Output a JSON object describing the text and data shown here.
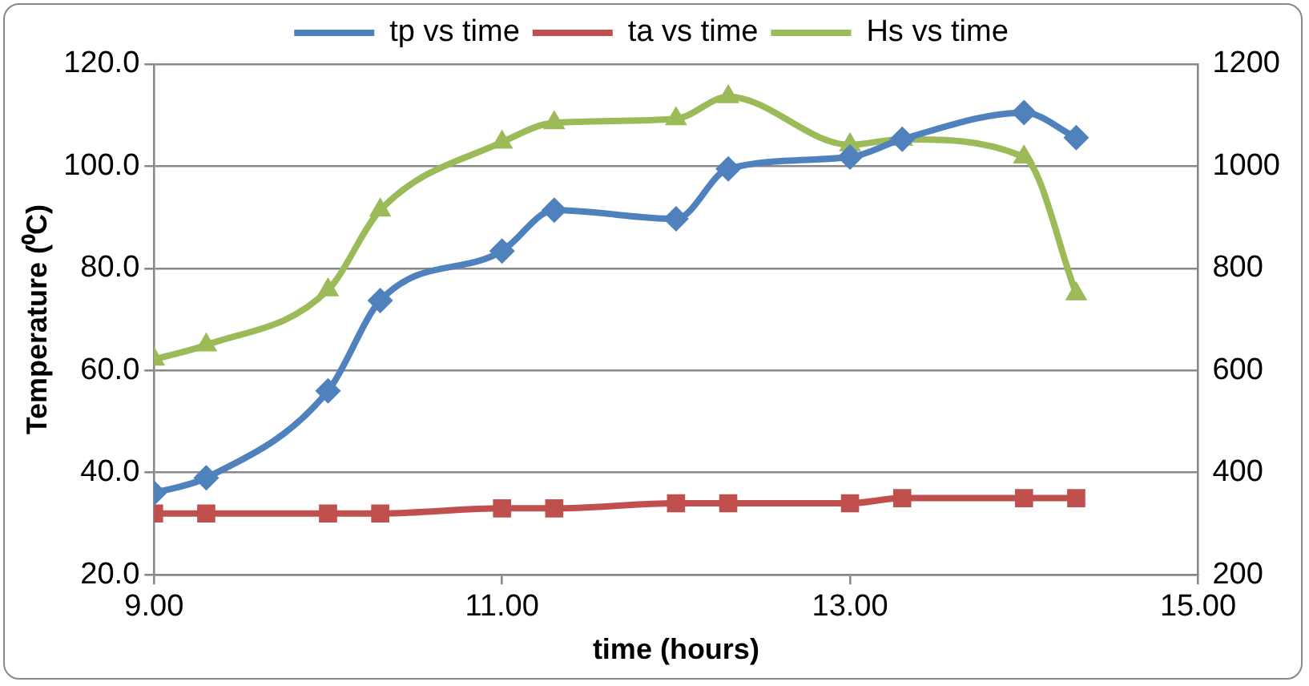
{
  "chart_data": {
    "type": "line",
    "xlabel": "time (hours)",
    "ylabel": "Temperature (⁰C)",
    "x": [
      9.0,
      9.3,
      10.0,
      10.3,
      11.0,
      11.3,
      12.0,
      12.3,
      13.0,
      13.3,
      14.0,
      14.3
    ],
    "series": [
      {
        "name": "tp vs time",
        "color": "#4f81bd",
        "marker": "diamond",
        "values": [
          36,
          39,
          56,
          73.7,
          83.4,
          91.4,
          89.7,
          99.5,
          101.8,
          105.3,
          110.5,
          105.6
        ]
      },
      {
        "name": "ta vs time",
        "color": "#c0504d",
        "marker": "square",
        "values": [
          32,
          32,
          32,
          32,
          33,
          33,
          34,
          34,
          34,
          35,
          35,
          35
        ]
      },
      {
        "name": "Hs vs time",
        "color": "#9bbb59",
        "marker": "triangle",
        "axis": "y2",
        "values": [
          622,
          650,
          758,
          914,
          1047,
          1085,
          1093,
          1136,
          1042,
          1053,
          1018,
          750
        ]
      }
    ],
    "xlim": [
      9,
      15
    ],
    "xticks": [
      {
        "value": 9,
        "label": "9.00"
      },
      {
        "value": 11,
        "label": "11.00"
      },
      {
        "value": 13,
        "label": "13.00"
      },
      {
        "value": 15,
        "label": "15.00"
      }
    ],
    "ylim": [
      20,
      120
    ],
    "yticks": [
      {
        "value": 20,
        "label": "20.0"
      },
      {
        "value": 40,
        "label": "40.0"
      },
      {
        "value": 60,
        "label": "60.0"
      },
      {
        "value": 80,
        "label": "80.0"
      },
      {
        "value": 100,
        "label": "100.0"
      },
      {
        "value": 120,
        "label": "120.0"
      }
    ],
    "y2lim": [
      200,
      1200
    ],
    "y2ticks": [
      200,
      400,
      600,
      800,
      1000,
      1200
    ],
    "grid": "y",
    "legend": "top",
    "line_style": "solid"
  }
}
